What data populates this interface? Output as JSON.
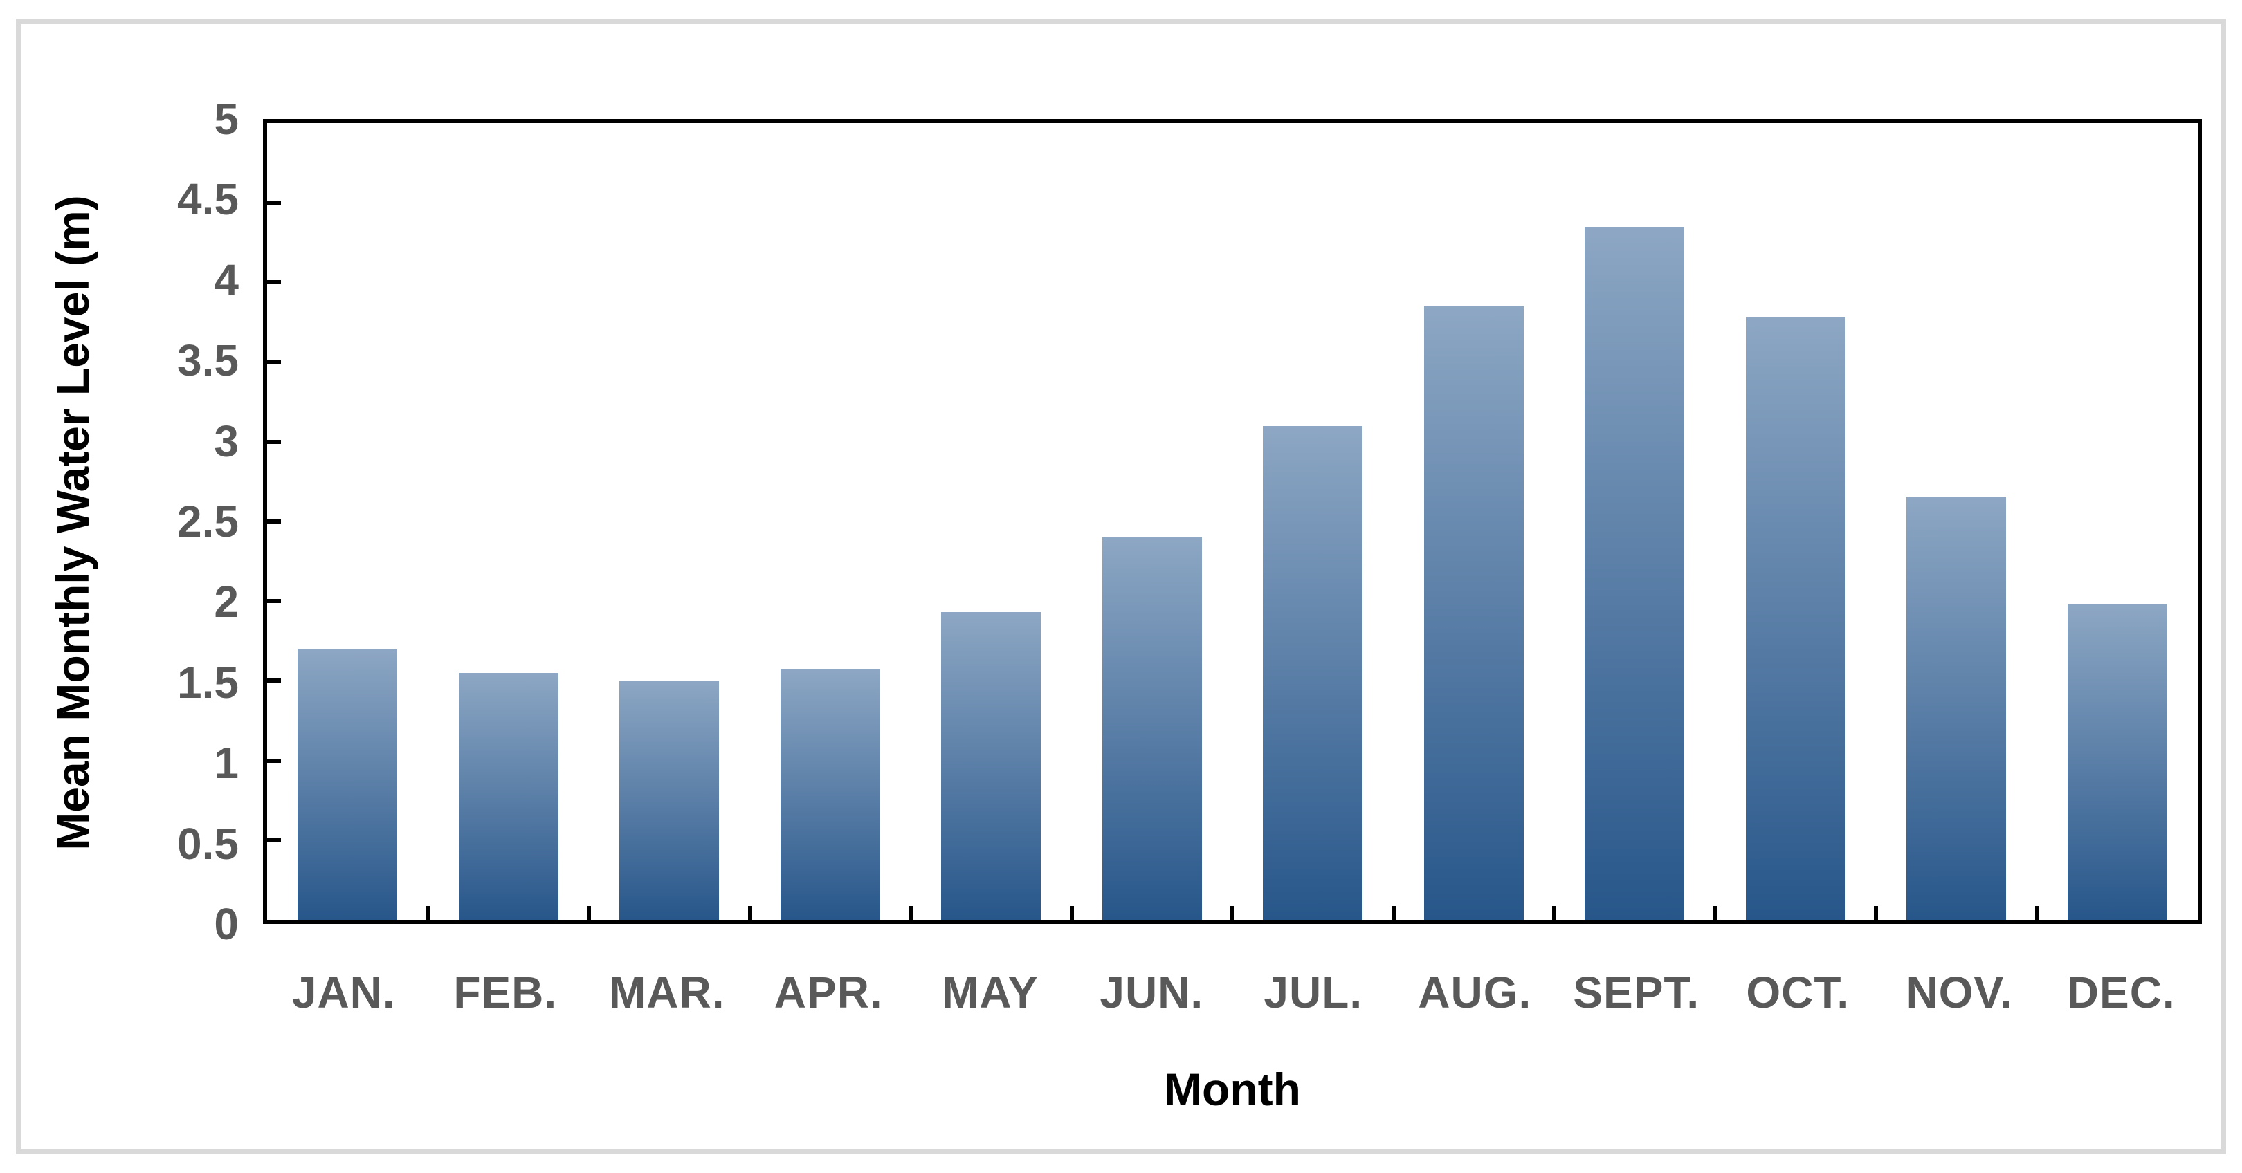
{
  "frame": {
    "border_color": "#D9D9D9"
  },
  "chart_data": {
    "type": "bar",
    "title": "",
    "categories": [
      "JAN.",
      "FEB.",
      "MAR.",
      "APR.",
      "MAY",
      "JUN.",
      "JUL.",
      "AUG.",
      "SEPT.",
      "OCT.",
      "NOV.",
      "DEC."
    ],
    "values": [
      1.7,
      1.55,
      1.5,
      1.57,
      1.93,
      2.4,
      3.1,
      3.85,
      4.35,
      3.78,
      2.65,
      1.98
    ],
    "xlabel": "Month",
    "ylabel": "Mean Monthly Water Level (m)",
    "ylim": [
      0,
      5
    ],
    "ytick_step": 0.5,
    "ytick_labels": [
      "0",
      "0.5",
      "1",
      "1.5",
      "2",
      "2.5",
      "3",
      "3.5",
      "4",
      "4.5",
      "5"
    ],
    "grid": "off",
    "legend": "none",
    "colors": {
      "bar_gradient_top": "#8DA7C4",
      "bar_gradient_bottom": "#27568A",
      "axis_line": "#000000",
      "tick_label": "#595959",
      "axis_title": "#000000"
    }
  }
}
